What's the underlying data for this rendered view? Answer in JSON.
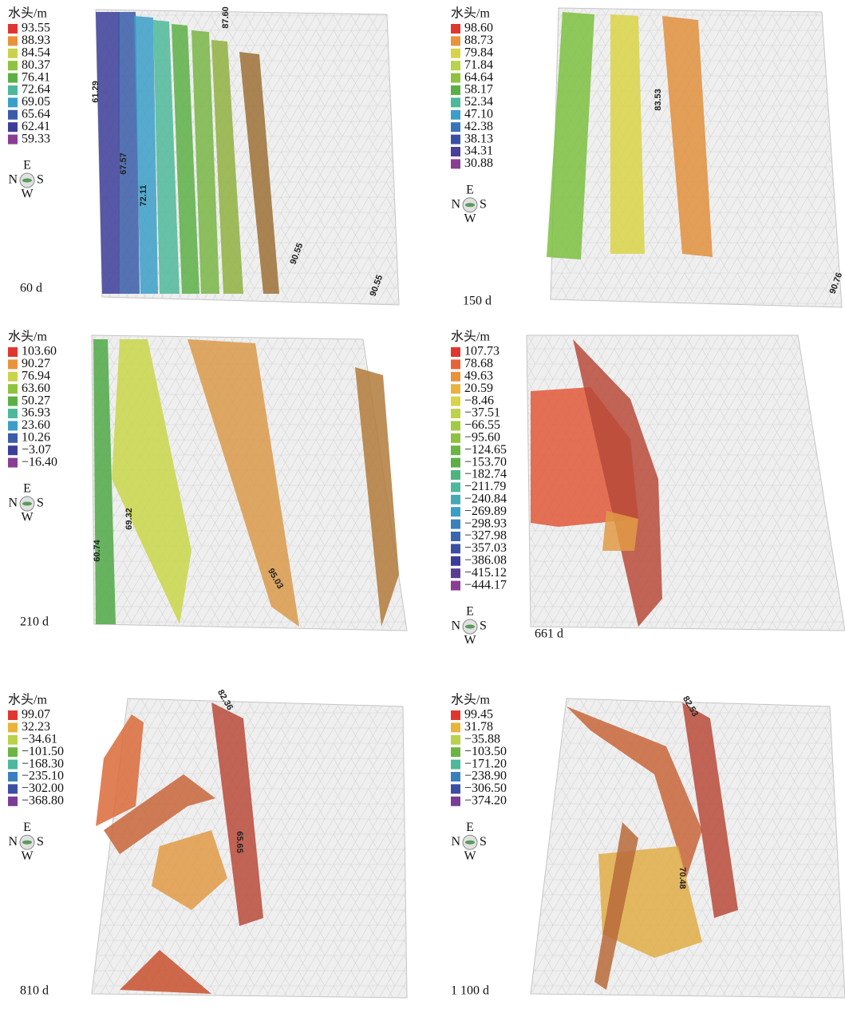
{
  "panels": [
    {
      "legend_title": "水头/m",
      "time": "60 d",
      "compass": {
        "e": "E",
        "n": "N",
        "s": "S",
        "w": "W"
      },
      "legend": [
        {
          "label": "93.55",
          "color": "#e0362f"
        },
        {
          "label": "88.93",
          "color": "#e8933c"
        },
        {
          "label": "84.54",
          "color": "#c9d24b"
        },
        {
          "label": "80.37",
          "color": "#8fc23e"
        },
        {
          "label": "76.41",
          "color": "#5caf47"
        },
        {
          "label": "72.64",
          "color": "#4db89a"
        },
        {
          "label": "69.05",
          "color": "#3b9ec8"
        },
        {
          "label": "65.64",
          "color": "#3a5da8"
        },
        {
          "label": "62.41",
          "color": "#3c3d99"
        },
        {
          "label": "59.33",
          "color": "#8a3d95"
        }
      ],
      "contour_labels": [
        "61.29",
        "67.57",
        "72.11",
        "87.60",
        "90.55",
        "90.55"
      ]
    },
    {
      "legend_title": "水头/m",
      "time": "150 d",
      "compass": {
        "e": "E",
        "n": "N",
        "s": "S",
        "w": "W"
      },
      "legend": [
        {
          "label": "98.60",
          "color": "#e0362f"
        },
        {
          "label": "88.73",
          "color": "#e8933c"
        },
        {
          "label": "79.84",
          "color": "#d9d447"
        },
        {
          "label": "71.84",
          "color": "#b9d24a"
        },
        {
          "label": "64.64",
          "color": "#8fc23e"
        },
        {
          "label": "58.17",
          "color": "#5caf47"
        },
        {
          "label": "52.34",
          "color": "#4db89a"
        },
        {
          "label": "47.10",
          "color": "#3b9ec8"
        },
        {
          "label": "42.38",
          "color": "#3a74b8"
        },
        {
          "label": "38.13",
          "color": "#3a4fa3"
        },
        {
          "label": "34.31",
          "color": "#4a3f99"
        },
        {
          "label": "30.88",
          "color": "#8a3d95"
        }
      ],
      "contour_labels": [
        "83.53",
        "90.76"
      ]
    },
    {
      "legend_title": "水头/m",
      "time": "210 d",
      "compass": {
        "e": "E",
        "n": "N",
        "s": "S",
        "w": "W"
      },
      "legend": [
        {
          "label": "103.60",
          "color": "#e0362f"
        },
        {
          "label": "90.27",
          "color": "#e8933c"
        },
        {
          "label": "76.94",
          "color": "#c9d24b"
        },
        {
          "label": "63.60",
          "color": "#8fc23e"
        },
        {
          "label": "50.27",
          "color": "#5caf47"
        },
        {
          "label": "36.93",
          "color": "#4db89a"
        },
        {
          "label": "23.60",
          "color": "#3b9ec8"
        },
        {
          "label": "10.26",
          "color": "#3a5da8"
        },
        {
          "label": "−3.07",
          "color": "#3c3d99"
        },
        {
          "label": "−16.40",
          "color": "#8a3d95"
        }
      ],
      "contour_labels": [
        "60.74",
        "69.32",
        "95.03"
      ]
    },
    {
      "legend_title": "水头/m",
      "time": "661 d",
      "compass": {
        "e": "E",
        "n": "N",
        "s": "S",
        "w": "W"
      },
      "legend": [
        {
          "label": "107.73",
          "color": "#e0362f"
        },
        {
          "label": "78.68",
          "color": "#e6633a"
        },
        {
          "label": "49.63",
          "color": "#e8933c"
        },
        {
          "label": "20.59",
          "color": "#e8b43d"
        },
        {
          "label": "−8.46",
          "color": "#d9d447"
        },
        {
          "label": "−37.51",
          "color": "#bcd24a"
        },
        {
          "label": "−66.55",
          "color": "#a3ca43"
        },
        {
          "label": "−95.60",
          "color": "#8fc23e"
        },
        {
          "label": "−124.65",
          "color": "#6cb545"
        },
        {
          "label": "−153.70",
          "color": "#5caf47"
        },
        {
          "label": "−182.74",
          "color": "#4db480"
        },
        {
          "label": "−211.79",
          "color": "#4db89a"
        },
        {
          "label": "−240.84",
          "color": "#43aab5"
        },
        {
          "label": "−269.89",
          "color": "#3b9ec8"
        },
        {
          "label": "−298.93",
          "color": "#3a80bd"
        },
        {
          "label": "−327.98",
          "color": "#3a66ad"
        },
        {
          "label": "−357.03",
          "color": "#3a4fa3"
        },
        {
          "label": "−386.08",
          "color": "#3c3d99"
        },
        {
          "label": "−415.12",
          "color": "#5a3c97"
        },
        {
          "label": "−444.17",
          "color": "#8a3d95"
        }
      ],
      "contour_labels": []
    },
    {
      "legend_title": "水头/m",
      "time": "810 d",
      "compass": {
        "e": "E",
        "n": "N",
        "s": "S",
        "w": "W"
      },
      "legend": [
        {
          "label": "99.07",
          "color": "#e0362f"
        },
        {
          "label": "32.23",
          "color": "#e8b43d"
        },
        {
          "label": "−34.61",
          "color": "#b9d24a"
        },
        {
          "label": "−101.50",
          "color": "#6cb545"
        },
        {
          "label": "−168.30",
          "color": "#4db89a"
        },
        {
          "label": "−235.10",
          "color": "#3a80bd"
        },
        {
          "label": "−302.00",
          "color": "#3a4fa3"
        },
        {
          "label": "−368.80",
          "color": "#7a3d95"
        }
      ],
      "contour_labels": [
        "82.36",
        "65.65"
      ]
    },
    {
      "legend_title": "水头/m",
      "time": "1 100 d",
      "compass": {
        "e": "E",
        "n": "N",
        "s": "S",
        "w": "W"
      },
      "legend": [
        {
          "label": "99.45",
          "color": "#e0362f"
        },
        {
          "label": "31.78",
          "color": "#e8b43d"
        },
        {
          "label": "−35.88",
          "color": "#b9d24a"
        },
        {
          "label": "−103.50",
          "color": "#6cb545"
        },
        {
          "label": "−171.20",
          "color": "#4db89a"
        },
        {
          "label": "−238.90",
          "color": "#3a80bd"
        },
        {
          "label": "−306.50",
          "color": "#3a4fa3"
        },
        {
          "label": "−374.20",
          "color": "#7a3d95"
        }
      ],
      "contour_labels": [
        "82.53",
        "70.48"
      ]
    }
  ]
}
